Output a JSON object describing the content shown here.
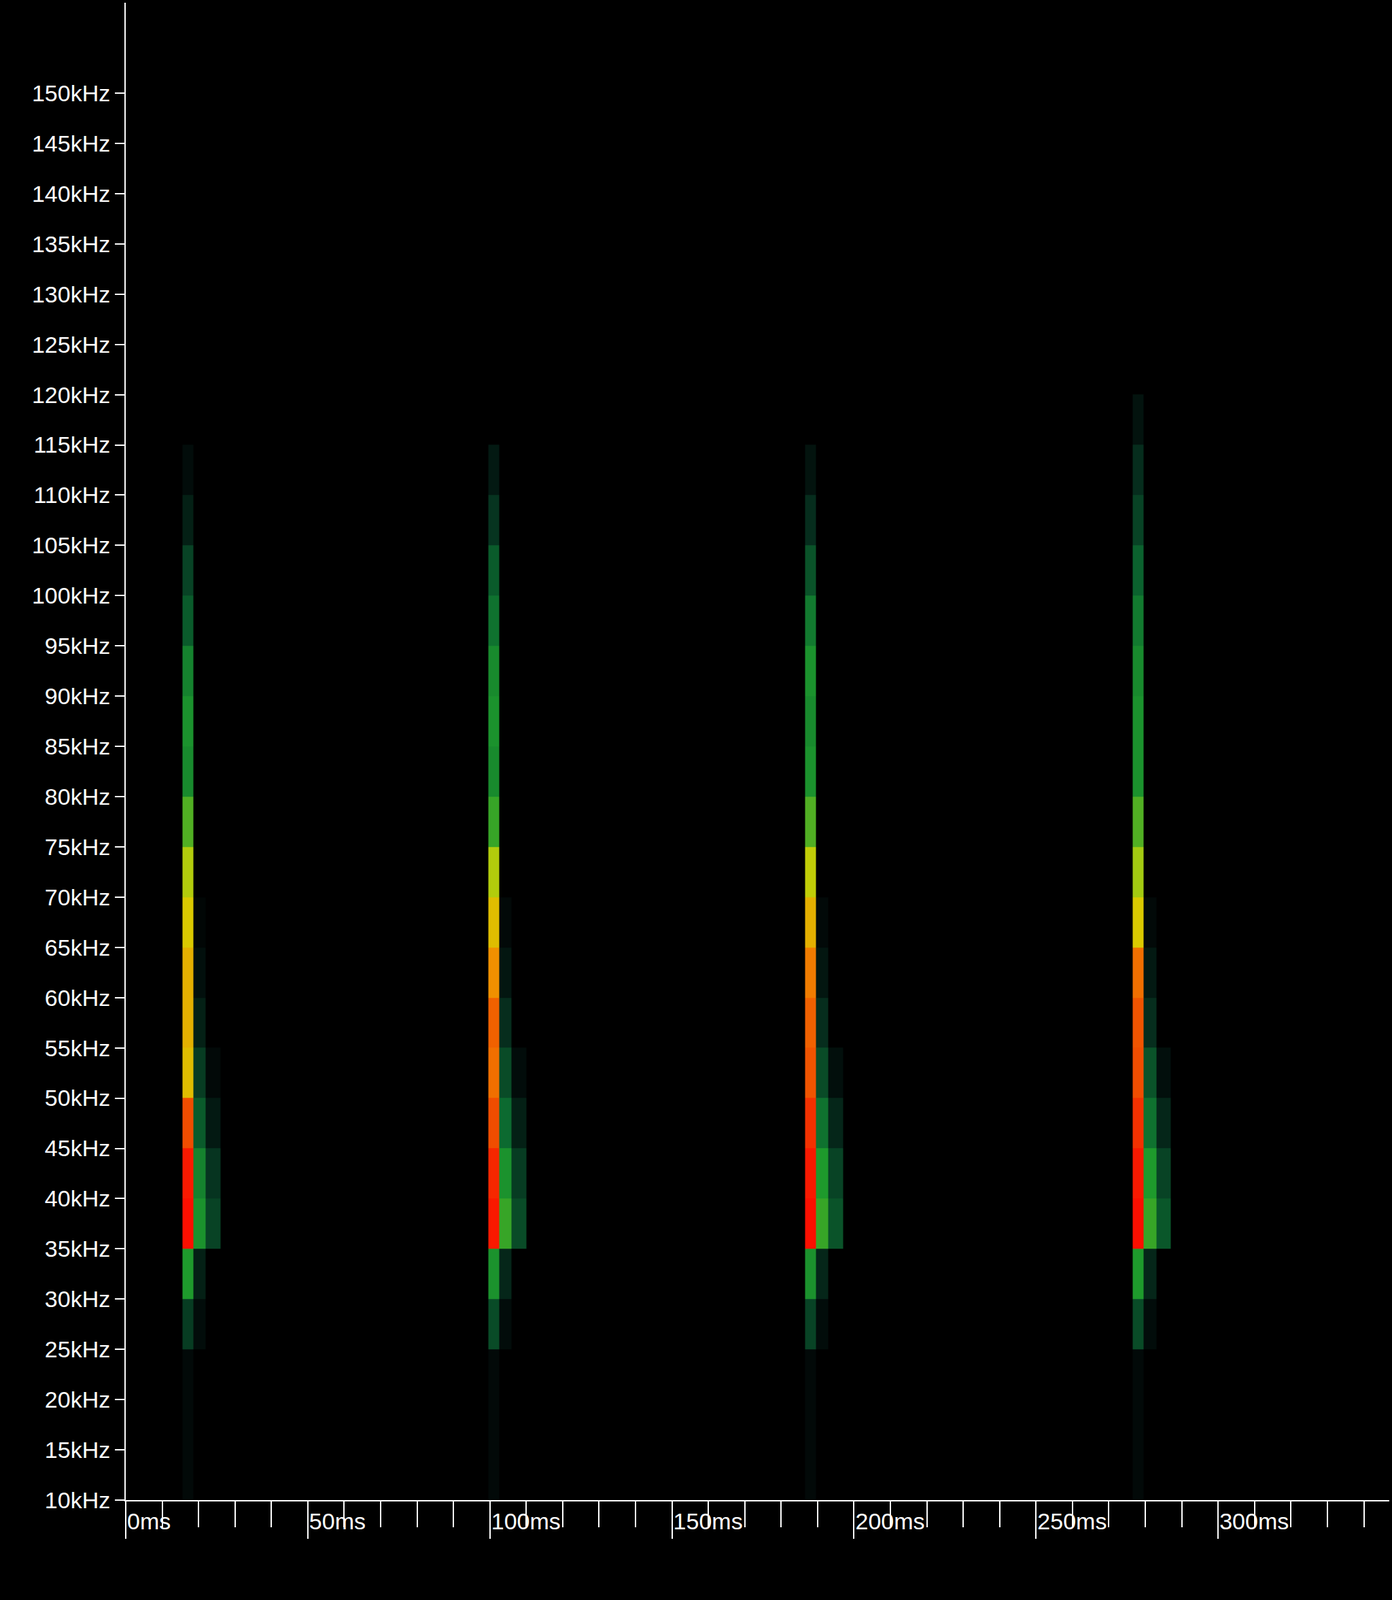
{
  "chart_data": {
    "type": "heatmap",
    "x": [
      0,
      14,
      17,
      20,
      24,
      28,
      98,
      101,
      104,
      108,
      112,
      185,
      188,
      191,
      195,
      199,
      275,
      278,
      281,
      285,
      289,
      346
    ],
    "y": [
      12.5,
      17.5,
      22.5,
      27.5,
      32.5,
      37.5,
      42.5,
      47.5,
      52.5,
      57.5,
      62.5,
      67.5,
      72.5,
      77.5,
      82.5,
      87.5,
      92.5,
      97.5,
      102.5,
      107.5,
      112.5,
      117.5,
      122.5,
      127.5,
      132.5,
      137.5,
      142.5,
      147.5,
      152.5,
      157.5
    ],
    "z": [
      [
        0,
        0,
        3,
        0,
        0,
        0,
        0,
        3,
        0,
        0,
        0,
        0,
        3,
        0,
        0,
        0,
        0,
        3,
        0,
        0,
        0,
        0
      ],
      [
        0,
        0,
        3,
        0,
        0,
        0,
        0,
        3,
        0,
        0,
        0,
        0,
        3,
        0,
        0,
        0,
        0,
        3,
        0,
        0,
        0,
        0
      ],
      [
        0,
        0,
        3,
        0,
        0,
        0,
        0,
        3,
        0,
        0,
        0,
        0,
        3,
        0,
        0,
        0,
        0,
        3,
        0,
        0,
        0,
        0
      ],
      [
        0,
        0,
        18,
        4,
        0,
        0,
        0,
        22,
        4,
        0,
        0,
        0,
        20,
        4,
        0,
        0,
        0,
        22,
        4,
        0,
        0,
        0
      ],
      [
        0,
        0,
        42,
        10,
        0,
        0,
        0,
        40,
        12,
        0,
        0,
        0,
        40,
        12,
        0,
        0,
        0,
        42,
        12,
        0,
        0,
        0
      ],
      [
        0,
        0,
        97,
        40,
        20,
        0,
        0,
        95,
        45,
        22,
        0,
        0,
        97,
        45,
        24,
        0,
        0,
        97,
        45,
        25,
        0,
        0
      ],
      [
        0,
        0,
        95,
        36,
        16,
        0,
        0,
        92,
        40,
        18,
        0,
        0,
        95,
        42,
        20,
        0,
        0,
        95,
        42,
        20,
        0,
        0
      ],
      [
        0,
        0,
        85,
        26,
        8,
        0,
        0,
        85,
        30,
        10,
        0,
        0,
        90,
        32,
        12,
        0,
        0,
        90,
        32,
        12,
        0,
        0
      ],
      [
        0,
        0,
        68,
        18,
        3,
        0,
        0,
        80,
        22,
        4,
        0,
        0,
        84,
        22,
        5,
        0,
        0,
        85,
        24,
        5,
        0,
        0
      ],
      [
        0,
        0,
        70,
        10,
        0,
        0,
        0,
        82,
        14,
        0,
        0,
        0,
        82,
        14,
        0,
        0,
        0,
        84,
        14,
        0,
        0,
        0
      ],
      [
        0,
        0,
        70,
        5,
        0,
        0,
        0,
        75,
        7,
        0,
        0,
        0,
        78,
        7,
        0,
        0,
        0,
        80,
        8,
        0,
        0,
        0
      ],
      [
        0,
        0,
        66,
        2,
        0,
        0,
        0,
        68,
        3,
        0,
        0,
        0,
        70,
        3,
        0,
        0,
        0,
        66,
        3,
        0,
        0,
        0
      ],
      [
        0,
        0,
        60,
        0,
        0,
        0,
        0,
        60,
        0,
        0,
        0,
        0,
        62,
        0,
        0,
        0,
        0,
        58,
        0,
        0,
        0,
        0
      ],
      [
        0,
        0,
        48,
        0,
        0,
        0,
        0,
        45,
        0,
        0,
        0,
        0,
        48,
        0,
        0,
        0,
        0,
        48,
        0,
        0,
        0,
        0
      ],
      [
        0,
        0,
        38,
        0,
        0,
        0,
        0,
        38,
        0,
        0,
        0,
        0,
        40,
        0,
        0,
        0,
        0,
        40,
        0,
        0,
        0,
        0
      ],
      [
        0,
        0,
        40,
        0,
        0,
        0,
        0,
        40,
        0,
        0,
        0,
        0,
        38,
        0,
        0,
        0,
        0,
        40,
        0,
        0,
        0,
        0
      ],
      [
        0,
        0,
        36,
        0,
        0,
        0,
        0,
        38,
        0,
        0,
        0,
        0,
        40,
        0,
        0,
        0,
        0,
        38,
        0,
        0,
        0,
        0
      ],
      [
        0,
        0,
        26,
        0,
        0,
        0,
        0,
        32,
        0,
        0,
        0,
        0,
        34,
        0,
        0,
        0,
        0,
        34,
        0,
        0,
        0,
        0
      ],
      [
        0,
        0,
        20,
        0,
        0,
        0,
        0,
        26,
        0,
        0,
        0,
        0,
        24,
        0,
        0,
        0,
        0,
        28,
        0,
        0,
        0,
        0
      ],
      [
        0,
        0,
        10,
        0,
        0,
        0,
        0,
        16,
        0,
        0,
        0,
        0,
        14,
        0,
        0,
        0,
        0,
        20,
        0,
        0,
        0,
        0
      ],
      [
        0,
        0,
        4,
        0,
        0,
        0,
        0,
        8,
        0,
        0,
        0,
        0,
        6,
        0,
        0,
        0,
        0,
        14,
        0,
        0,
        0,
        0
      ],
      [
        0,
        0,
        0,
        0,
        0,
        0,
        0,
        0,
        0,
        0,
        0,
        0,
        0,
        0,
        0,
        0,
        0,
        6,
        0,
        0,
        0,
        0
      ],
      [
        0,
        0,
        0,
        0,
        0,
        0,
        0,
        0,
        0,
        0,
        0,
        0,
        0,
        0,
        0,
        0,
        0,
        0,
        0,
        0,
        0,
        0
      ],
      [
        0,
        0,
        0,
        0,
        0,
        0,
        0,
        0,
        0,
        0,
        0,
        0,
        0,
        0,
        0,
        0,
        0,
        0,
        0,
        0,
        0,
        0
      ],
      [
        0,
        0,
        0,
        0,
        0,
        0,
        0,
        0,
        0,
        0,
        0,
        0,
        0,
        0,
        0,
        0,
        0,
        0,
        0,
        0,
        0,
        0
      ],
      [
        0,
        0,
        0,
        0,
        0,
        0,
        0,
        0,
        0,
        0,
        0,
        0,
        0,
        0,
        0,
        0,
        0,
        0,
        0,
        0,
        0,
        0
      ],
      [
        0,
        0,
        0,
        0,
        0,
        0,
        0,
        0,
        0,
        0,
        0,
        0,
        0,
        0,
        0,
        0,
        0,
        0,
        0,
        0,
        0,
        0
      ],
      [
        0,
        0,
        0,
        0,
        0,
        0,
        0,
        0,
        0,
        0,
        0,
        0,
        0,
        0,
        0,
        0,
        0,
        0,
        0,
        0,
        0,
        0
      ],
      [
        0,
        0,
        0,
        0,
        0,
        0,
        0,
        0,
        0,
        0,
        0,
        0,
        0,
        0,
        0,
        0,
        0,
        0,
        0,
        0,
        0,
        0
      ],
      [
        0,
        0,
        0,
        0,
        0,
        0,
        0,
        0,
        0,
        0,
        0,
        0,
        0,
        0,
        0,
        0,
        0,
        0,
        0,
        0,
        0,
        0
      ]
    ],
    "zlim": [
      0,
      100
    ],
    "xlim": [
      0,
      347
    ],
    "ylim": [
      10,
      159
    ],
    "xticks": [
      {
        "value": 0,
        "label": "0ms"
      },
      {
        "value": 50,
        "label": "50ms"
      },
      {
        "value": 100,
        "label": "100ms"
      },
      {
        "value": 150,
        "label": "150ms"
      },
      {
        "value": 200,
        "label": "200ms"
      },
      {
        "value": 250,
        "label": "250ms"
      },
      {
        "value": 300,
        "label": "300ms"
      }
    ],
    "yticks": [
      {
        "value": 10,
        "label": "10kHz"
      },
      {
        "value": 15,
        "label": "15kHz"
      },
      {
        "value": 20,
        "label": "20kHz"
      },
      {
        "value": 25,
        "label": "25kHz"
      },
      {
        "value": 30,
        "label": "30kHz"
      },
      {
        "value": 35,
        "label": "35kHz"
      },
      {
        "value": 40,
        "label": "40kHz"
      },
      {
        "value": 45,
        "label": "45kHz"
      },
      {
        "value": 50,
        "label": "50kHz"
      },
      {
        "value": 55,
        "label": "55kHz"
      },
      {
        "value": 60,
        "label": "60kHz"
      },
      {
        "value": 65,
        "label": "65kHz"
      },
      {
        "value": 70,
        "label": "70kHz"
      },
      {
        "value": 75,
        "label": "75kHz"
      },
      {
        "value": 80,
        "label": "80kHz"
      },
      {
        "value": 85,
        "label": "85kHz"
      },
      {
        "value": 90,
        "label": "90kHz"
      },
      {
        "value": 95,
        "label": "95kHz"
      },
      {
        "value": 100,
        "label": "100kHz"
      },
      {
        "value": 105,
        "label": "105kHz"
      },
      {
        "value": 110,
        "label": "110kHz"
      },
      {
        "value": 115,
        "label": "115kHz"
      },
      {
        "value": 120,
        "label": "120kHz"
      },
      {
        "value": 125,
        "label": "125kHz"
      },
      {
        "value": 130,
        "label": "130kHz"
      },
      {
        "value": 135,
        "label": "135kHz"
      },
      {
        "value": 140,
        "label": "140kHz"
      },
      {
        "value": 145,
        "label": "145kHz"
      },
      {
        "value": 150,
        "label": "150kHz"
      }
    ],
    "grid": false
  }
}
